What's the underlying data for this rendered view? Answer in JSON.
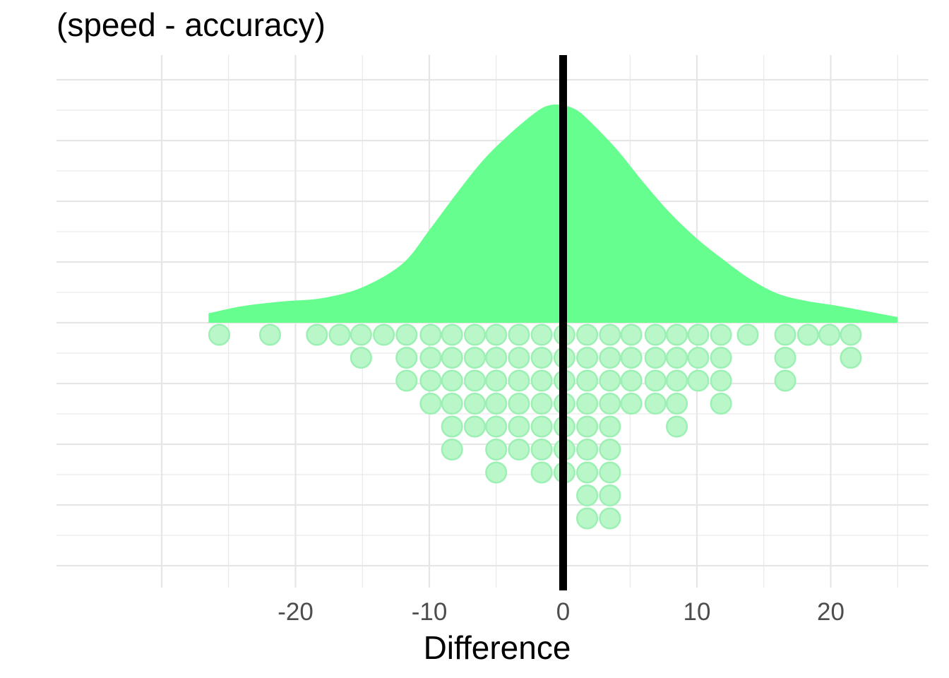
{
  "chart_data": {
    "type": "raincloud",
    "title": "(speed - accuracy)",
    "xlabel": "Difference",
    "ylabel": "",
    "xlim": [
      -28.5,
      25
    ],
    "x_ticks": [
      -20,
      -10,
      0,
      10,
      20
    ],
    "x_tick_labels": [
      "-20",
      "-10",
      "0",
      "10",
      "20"
    ],
    "grid": true,
    "reference_line": {
      "x": 0,
      "color": "#000000"
    },
    "colors": {
      "density_fill": "#66FF8F",
      "dot_fill": "#B9F7C9",
      "dot_stroke": "#9CF0B3",
      "grid": "#e6e6e6"
    },
    "density": {
      "x": [
        -26.5,
        -24,
        -21,
        -18,
        -15,
        -12,
        -10,
        -8,
        -6,
        -4,
        -2,
        -1,
        0,
        1,
        2,
        4,
        6,
        8,
        10,
        12,
        14,
        16,
        18,
        20,
        22,
        25
      ],
      "y": [
        0.002,
        0.0035,
        0.0045,
        0.0052,
        0.0075,
        0.0125,
        0.0196,
        0.0272,
        0.0343,
        0.0399,
        0.0446,
        0.046,
        0.046,
        0.045,
        0.0426,
        0.0367,
        0.0297,
        0.0232,
        0.0178,
        0.0133,
        0.0092,
        0.0062,
        0.0047,
        0.0038,
        0.0028,
        0.0012
      ]
    },
    "dots": {
      "x": [
        -25.7,
        -21.9,
        -18.4,
        -16.7,
        -15.1,
        -13.4,
        -11.7,
        -9.9,
        -8.3,
        -6.6,
        -5.0,
        -3.3,
        -1.6,
        0.1,
        1.8,
        3.5,
        5.1,
        6.9,
        8.5,
        10.1,
        11.8,
        13.8,
        16.6,
        18.3,
        19.9,
        21.5
      ],
      "counts": [
        1,
        1,
        1,
        1,
        2,
        1,
        3,
        4,
        6,
        5,
        7,
        6,
        7,
        7,
        9,
        9,
        4,
        4,
        5,
        3,
        4,
        1,
        3,
        1,
        1,
        2
      ]
    }
  }
}
